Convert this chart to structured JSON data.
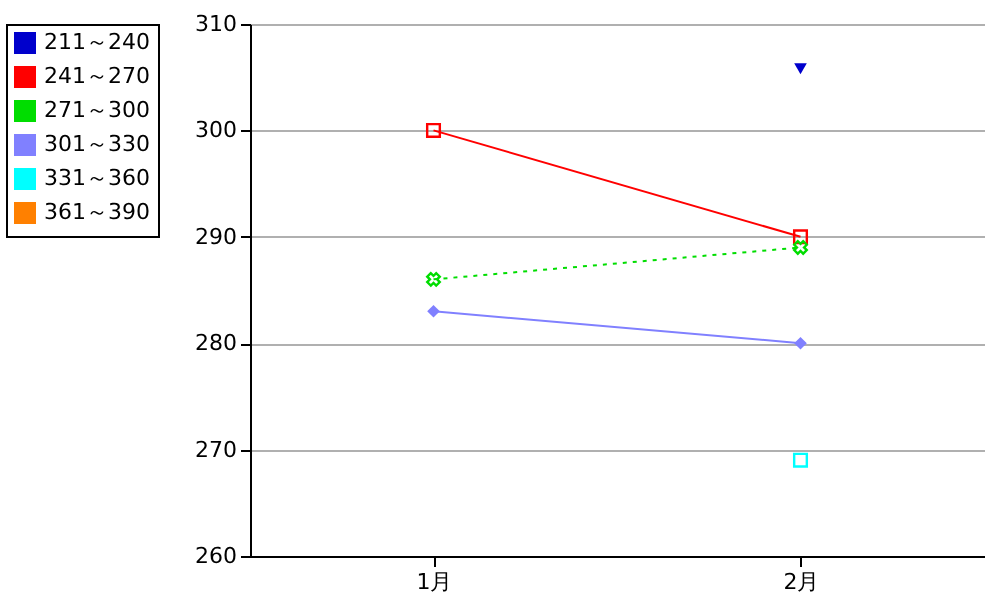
{
  "chart_data": {
    "type": "line",
    "categories": [
      "1月",
      "2月"
    ],
    "series": [
      {
        "name": "211～240",
        "color": "#0000cc",
        "values": [
          null,
          305.8
        ],
        "marker": "triangle-down",
        "line_style": "solid"
      },
      {
        "name": "241～270",
        "color": "#ff0000",
        "values": [
          300,
          290
        ],
        "marker": "square",
        "line_style": "solid"
      },
      {
        "name": "271～300",
        "color": "#00dd00",
        "values": [
          286,
          289
        ],
        "marker": "cross",
        "line_style": "dotted"
      },
      {
        "name": "301～330",
        "color": "#8080ff",
        "values": [
          283,
          280
        ],
        "marker": "diamond",
        "line_style": "solid"
      },
      {
        "name": "331～360",
        "color": "#00ffff",
        "values": [
          null,
          269
        ],
        "marker": "square",
        "line_style": "solid"
      },
      {
        "name": "361～390",
        "color": "#ff8000",
        "values": [
          null,
          null
        ],
        "marker": "square",
        "line_style": "solid"
      }
    ],
    "ylim": [
      260,
      310
    ],
    "yticks": [
      260,
      270,
      280,
      290,
      300,
      310
    ],
    "grid": "y",
    "legend": "top left"
  }
}
